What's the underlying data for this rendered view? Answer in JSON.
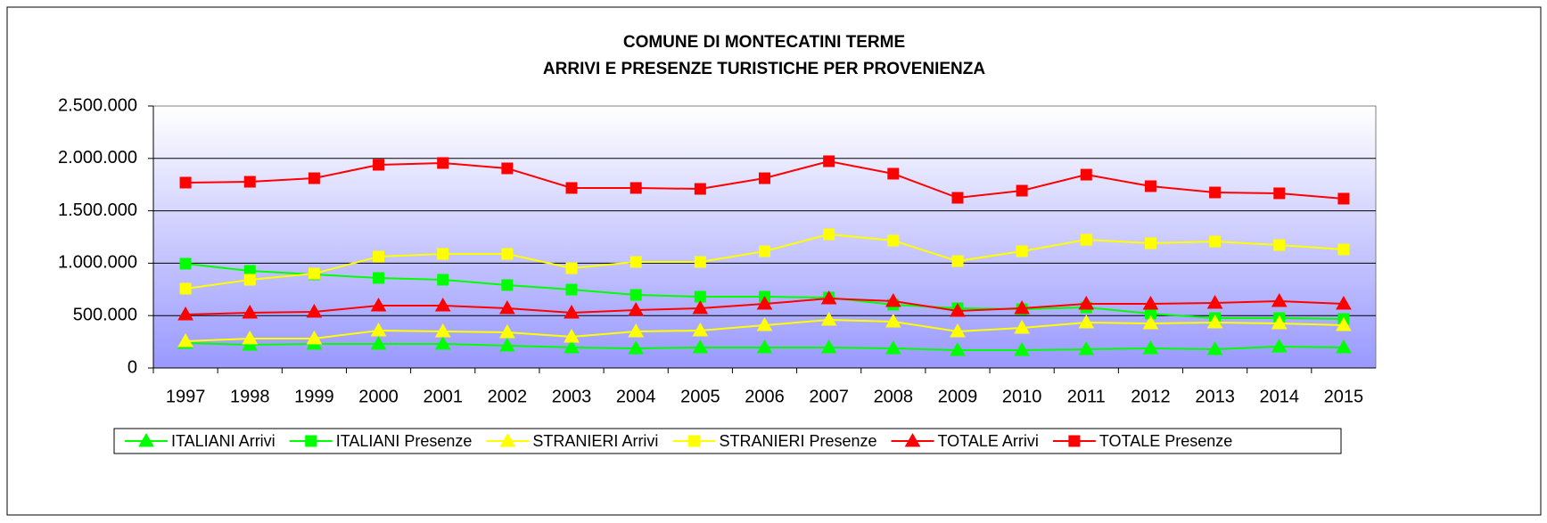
{
  "chart_data": {
    "type": "line",
    "title": "COMUNE DI MONTECATINI TERME",
    "subtitle": "ARRIVI E PRESENZE TURISTICHE PER PROVENIENZA",
    "categories": [
      "1997",
      "1998",
      "1999",
      "2000",
      "2001",
      "2002",
      "2003",
      "2004",
      "2005",
      "2006",
      "2007",
      "2008",
      "2009",
      "2010",
      "2011",
      "2012",
      "2013",
      "2014",
      "2015"
    ],
    "ylim": [
      0,
      2500000
    ],
    "yticks": [
      0,
      {
        "value": 500000,
        "label": "500.000"
      },
      {
        "value": 1000000,
        "label": "1.000.000"
      },
      {
        "value": 1500000,
        "label": "1.500.000"
      },
      {
        "value": 2000000,
        "label": "2.000.000"
      },
      {
        "value": 2500000,
        "label": "2.500.000"
      }
    ],
    "grid": true,
    "legend": "bottom",
    "series": [
      {
        "name": "ITALIANI Arrivi",
        "color": "#00ff00",
        "marker": "triangle",
        "values": [
          238000,
          221000,
          230000,
          230000,
          230000,
          213000,
          196000,
          187000,
          196000,
          196000,
          196000,
          187000,
          170000,
          170000,
          179000,
          187000,
          179000,
          204000,
          196000
        ]
      },
      {
        "name": "ITALIANI Presenze",
        "color": "#00ff00",
        "marker": "square",
        "values": [
          995000,
          927000,
          893000,
          859000,
          842000,
          791000,
          748000,
          697000,
          680000,
          680000,
          672000,
          604000,
          570000,
          561000,
          578000,
          519000,
          476000,
          476000,
          468000
        ]
      },
      {
        "name": "STRANIERI Arrivi",
        "color": "#ffff00",
        "marker": "triangle",
        "values": [
          255000,
          281000,
          281000,
          357000,
          349000,
          340000,
          298000,
          349000,
          357000,
          408000,
          459000,
          442000,
          349000,
          383000,
          434000,
          425000,
          434000,
          425000,
          408000
        ]
      },
      {
        "name": "STRANIERI Presenze",
        "color": "#ffff00",
        "marker": "square",
        "values": [
          757000,
          842000,
          901000,
          1063000,
          1088000,
          1088000,
          952000,
          1012000,
          1012000,
          1114000,
          1276000,
          1216000,
          1020000,
          1114000,
          1224000,
          1190000,
          1207000,
          1173000,
          1131000
        ]
      },
      {
        "name": "TOTALE Arrivi",
        "color": "#ff0000",
        "marker": "triangle",
        "values": [
          510000,
          527000,
          536000,
          595000,
          595000,
          570000,
          527000,
          553000,
          570000,
          612000,
          663000,
          638000,
          544000,
          570000,
          612000,
          612000,
          621000,
          638000,
          612000
        ]
      },
      {
        "name": "TOTALE Presenze",
        "color": "#ff0000",
        "marker": "square",
        "values": [
          1769000,
          1777000,
          1811000,
          1939000,
          1956000,
          1905000,
          1718000,
          1718000,
          1709000,
          1811000,
          1973000,
          1854000,
          1624000,
          1692000,
          1845000,
          1735000,
          1675000,
          1667000,
          1616000
        ]
      }
    ]
  }
}
